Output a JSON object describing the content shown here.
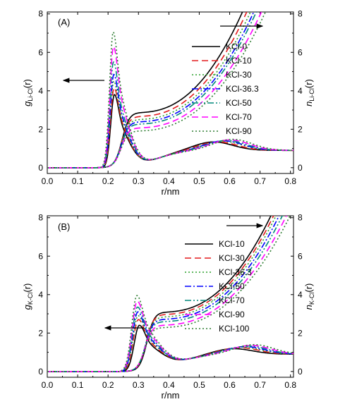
{
  "chart_data": [
    {
      "type": "line",
      "panel_label": "(A)",
      "xlabel": "r/nm",
      "ylabel_left": {
        "main": "g",
        "sub": "Li-Cl",
        "suffix": "(r)"
      },
      "ylabel_right": {
        "main": "n",
        "sub": "Li-Cl",
        "suffix": "(r)"
      },
      "xlim": [
        0.0,
        0.81
      ],
      "ylim": [
        -0.3,
        8.1
      ],
      "xticks": [
        "0.0",
        "0.1",
        "0.2",
        "0.3",
        "0.4",
        "0.5",
        "0.6",
        "0.7",
        "0.8"
      ],
      "yticks": [
        "0",
        "2",
        "4",
        "6",
        "8"
      ],
      "legend_position": "right",
      "series": [
        {
          "name": "KCl-0",
          "color": "#000000",
          "dash": "solid",
          "g_peak": 3.8,
          "g_peak_x": 0.221,
          "n_shoulder": 3.6,
          "n_factor": 1.0,
          "second_peak": [
            0.545,
            1.35
          ]
        },
        {
          "name": "KCl-10",
          "color": "#e31a1c",
          "dash": "dashed",
          "g_peak": 4.15,
          "g_peak_x": 0.22,
          "n_shoulder": 3.35,
          "n_factor": 0.94,
          "second_peak": [
            0.56,
            1.35
          ]
        },
        {
          "name": "KCl-30",
          "color": "#2ca02c",
          "dash": "dotted",
          "g_peak": 4.5,
          "g_peak_x": 0.219,
          "n_shoulder": 3.15,
          "n_factor": 0.89,
          "second_peak": [
            0.575,
            1.38
          ]
        },
        {
          "name": "KCl-36.3",
          "color": "#0000ff",
          "dash": "dashdot",
          "g_peak": 4.85,
          "g_peak_x": 0.219,
          "n_shoulder": 3.0,
          "n_factor": 0.85,
          "second_peak": [
            0.58,
            1.4
          ]
        },
        {
          "name": "KCl-50",
          "color": "#00897b",
          "dash": "dashdotdot",
          "g_peak": 5.5,
          "g_peak_x": 0.218,
          "n_shoulder": 2.85,
          "n_factor": 0.82,
          "second_peak": [
            0.59,
            1.42
          ]
        },
        {
          "name": "KCl-70",
          "color": "#ff00ff",
          "dash": "dashed",
          "g_peak": 6.3,
          "g_peak_x": 0.218,
          "n_shoulder": 2.6,
          "n_factor": 0.77,
          "second_peak": [
            0.6,
            1.45
          ]
        },
        {
          "name": "KCl-90",
          "color": "#2e7d32",
          "dash": "dotted",
          "g_peak": 7.05,
          "g_peak_x": 0.217,
          "n_shoulder": 2.4,
          "n_factor": 0.73,
          "second_peak": [
            0.61,
            1.48
          ]
        }
      ],
      "arrows": [
        {
          "direction": "left",
          "points_to": "g axis"
        },
        {
          "direction": "right",
          "points_to": "n axis"
        }
      ]
    },
    {
      "type": "line",
      "panel_label": "(B)",
      "xlabel": "r/nm",
      "ylabel_left": {
        "main": "g",
        "sub": "K-Cl",
        "suffix": "(r)"
      },
      "ylabel_right": {
        "main": "n",
        "sub": "K-Cl",
        "suffix": "(r)"
      },
      "xlim": [
        0.0,
        0.81
      ],
      "ylim": [
        -0.3,
        8.1
      ],
      "xticks": [
        "0.0",
        "0.1",
        "0.2",
        "0.3",
        "0.4",
        "0.5",
        "0.6",
        "0.7",
        "0.8"
      ],
      "yticks": [
        "0",
        "2",
        "4",
        "6",
        "8"
      ],
      "legend_position": "right",
      "series": [
        {
          "name": "KCl-10",
          "color": "#000000",
          "dash": "solid",
          "g_peak": 2.4,
          "g_peak_x": 0.303,
          "n_shoulder": 5.0,
          "n_factor": 1.0,
          "second_peak": [
            0.61,
            1.2
          ]
        },
        {
          "name": "KCl-30",
          "color": "#e31a1c",
          "dash": "dashed",
          "g_peak": 2.7,
          "g_peak_x": 0.3,
          "n_shoulder": 4.8,
          "n_factor": 0.95,
          "second_peak": [
            0.63,
            1.25
          ]
        },
        {
          "name": "KCl-36.3",
          "color": "#2ca02c",
          "dash": "dotted",
          "g_peak": 2.9,
          "g_peak_x": 0.299,
          "n_shoulder": 4.6,
          "n_factor": 0.92,
          "second_peak": [
            0.64,
            1.27
          ]
        },
        {
          "name": "KCl-50",
          "color": "#0000ff",
          "dash": "dashdot",
          "g_peak": 3.1,
          "g_peak_x": 0.298,
          "n_shoulder": 4.4,
          "n_factor": 0.88,
          "second_peak": [
            0.65,
            1.3
          ]
        },
        {
          "name": "KCl-70",
          "color": "#00897b",
          "dash": "dashdotdot",
          "g_peak": 3.35,
          "g_peak_x": 0.297,
          "n_shoulder": 4.2,
          "n_factor": 0.84,
          "second_peak": [
            0.66,
            1.33
          ]
        },
        {
          "name": "KCl-90",
          "color": "#ff00ff",
          "dash": "dashed",
          "g_peak": 3.65,
          "g_peak_x": 0.296,
          "n_shoulder": 3.9,
          "n_factor": 0.8,
          "second_peak": [
            0.67,
            1.36
          ]
        },
        {
          "name": "KCl-100",
          "color": "#2e7d32",
          "dash": "dotted",
          "g_peak": 3.95,
          "g_peak_x": 0.295,
          "n_shoulder": 3.7,
          "n_factor": 0.76,
          "second_peak": [
            0.68,
            1.4
          ]
        }
      ],
      "arrows": [
        {
          "direction": "left",
          "points_to": "g axis"
        },
        {
          "direction": "right",
          "points_to": "n axis"
        }
      ]
    }
  ]
}
